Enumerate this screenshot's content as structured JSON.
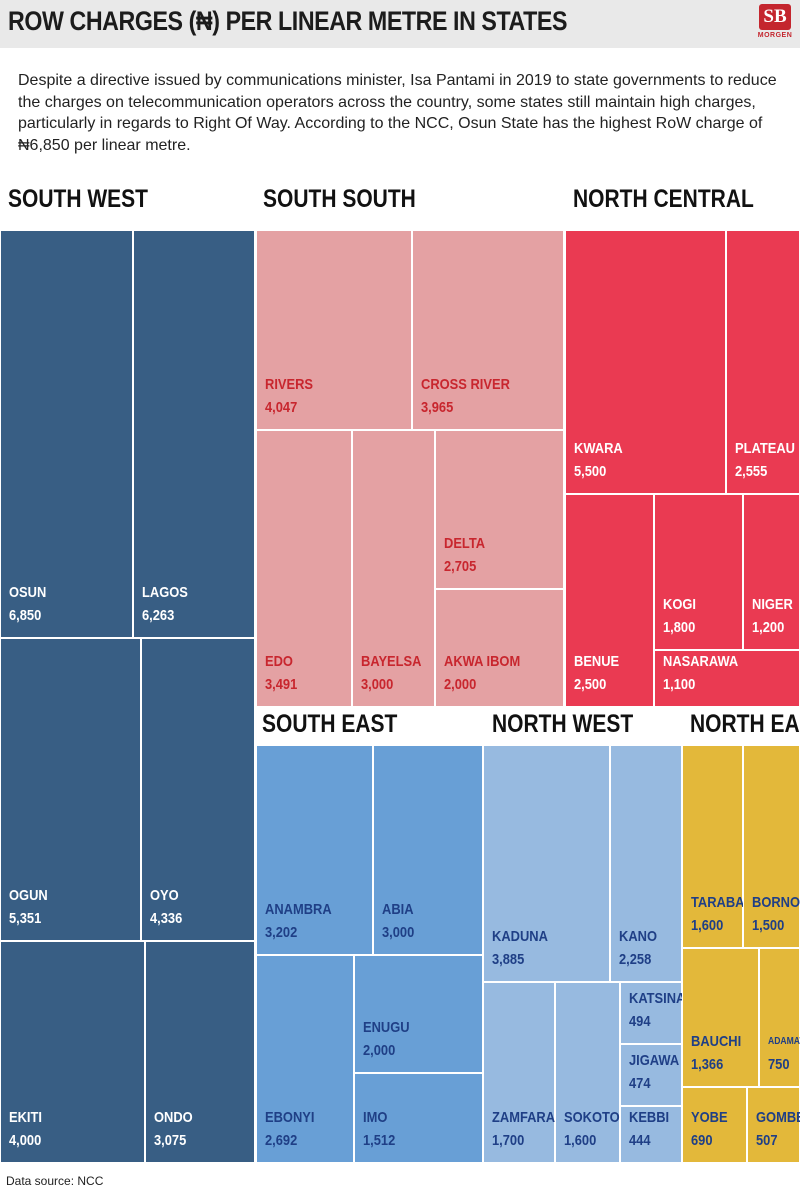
{
  "header": {
    "title": "ROW CHARGES (₦) PER LINEAR METRE IN STATES",
    "logo_text": "SB",
    "logo_sub": "MORGEN"
  },
  "intro": "Despite a directive issued by communications minister, Isa Pantami in 2019 to state governments to reduce the charges on telecommunication operators across the country, some states still maintain high charges, particularly in regards to Right Of Way. According to the NCC, Osun State has the highest RoW charge of ₦6,850 per linear metre.",
  "source": "Data source: NCC",
  "chart_data": {
    "type": "treemap",
    "title": "ROW CHARGES (₦) PER LINEAR METRE IN STATES",
    "unit": "₦ per linear metre",
    "colors": {
      "South West": {
        "fill": "#385e84",
        "text": "#ffffff"
      },
      "South South": {
        "fill": "#e4a1a3",
        "text": "#c8262e"
      },
      "North Central": {
        "fill": "#ea3a52",
        "text": "#ffffff"
      },
      "South East": {
        "fill": "#689fd6",
        "text": "#1f3f86"
      },
      "North West": {
        "fill": "#97bae0",
        "text": "#1f3f86"
      },
      "North East": {
        "fill": "#e3b83a",
        "text": "#1f3f86"
      }
    },
    "regions": [
      {
        "name": "SOUTH WEST",
        "key": "South West",
        "states": [
          {
            "name": "OSUN",
            "value": 6850,
            "display": "6,850"
          },
          {
            "name": "LAGOS",
            "value": 6263,
            "display": "6,263"
          },
          {
            "name": "OGUN",
            "value": 5351,
            "display": "5,351"
          },
          {
            "name": "OYO",
            "value": 4336,
            "display": "4,336"
          },
          {
            "name": "EKITI",
            "value": 4000,
            "display": "4,000"
          },
          {
            "name": "ONDO",
            "value": 3075,
            "display": "3,075"
          }
        ]
      },
      {
        "name": "SOUTH SOUTH",
        "key": "South South",
        "states": [
          {
            "name": "RIVERS",
            "value": 4047,
            "display": "4,047"
          },
          {
            "name": "CROSS RIVER",
            "value": 3965,
            "display": "3,965"
          },
          {
            "name": "EDO",
            "value": 3491,
            "display": "3,491"
          },
          {
            "name": "BAYELSA",
            "value": 3000,
            "display": "3,000"
          },
          {
            "name": "DELTA",
            "value": 2705,
            "display": "2,705"
          },
          {
            "name": "AKWA IBOM",
            "value": 2000,
            "display": "2,000"
          }
        ]
      },
      {
        "name": "NORTH CENTRAL",
        "key": "North Central",
        "states": [
          {
            "name": "KWARA",
            "value": 5500,
            "display": "5,500"
          },
          {
            "name": "PLATEAU",
            "value": 2555,
            "display": "2,555"
          },
          {
            "name": "BENUE",
            "value": 2500,
            "display": "2,500"
          },
          {
            "name": "KOGI",
            "value": 1800,
            "display": "1,800"
          },
          {
            "name": "NIGER",
            "value": 1200,
            "display": "1,200"
          },
          {
            "name": "NASARAWA",
            "value": 1100,
            "display": "1,100"
          }
        ]
      },
      {
        "name": "SOUTH EAST",
        "key": "South East",
        "states": [
          {
            "name": "ANAMBRA",
            "value": 3202,
            "display": "3,202"
          },
          {
            "name": "ABIA",
            "value": 3000,
            "display": "3,000"
          },
          {
            "name": "ENUGU",
            "value": 2000,
            "display": "2,000"
          },
          {
            "name": "EBONYI",
            "value": 2692,
            "display": "2,692"
          },
          {
            "name": "IMO",
            "value": 1512,
            "display": "1,512"
          }
        ]
      },
      {
        "name": "NORTH WEST",
        "key": "North West",
        "states": [
          {
            "name": "KADUNA",
            "value": 3885,
            "display": "3,885"
          },
          {
            "name": "KANO",
            "value": 2258,
            "display": "2,258"
          },
          {
            "name": "KATSINA",
            "value": 494,
            "display": "494"
          },
          {
            "name": "JIGAWA",
            "value": 474,
            "display": "474"
          },
          {
            "name": "ZAMFARA",
            "value": 1700,
            "display": "1,700"
          },
          {
            "name": "SOKOTO",
            "value": 1600,
            "display": "1,600"
          },
          {
            "name": "KEBBI",
            "value": 444,
            "display": "444"
          }
        ]
      },
      {
        "name": "NORTH EAST",
        "key": "North East",
        "states": [
          {
            "name": "TARABA",
            "value": 1600,
            "display": "1,600"
          },
          {
            "name": "BORNO",
            "value": 1500,
            "display": "1,500"
          },
          {
            "name": "BAUCHI",
            "value": 1366,
            "display": "1,366"
          },
          {
            "name": "ADAMAWA",
            "value": 750,
            "display": "750"
          },
          {
            "name": "YOBE",
            "value": 690,
            "display": "690"
          },
          {
            "name": "GOMBE",
            "value": 507,
            "display": "507"
          }
        ]
      }
    ]
  }
}
